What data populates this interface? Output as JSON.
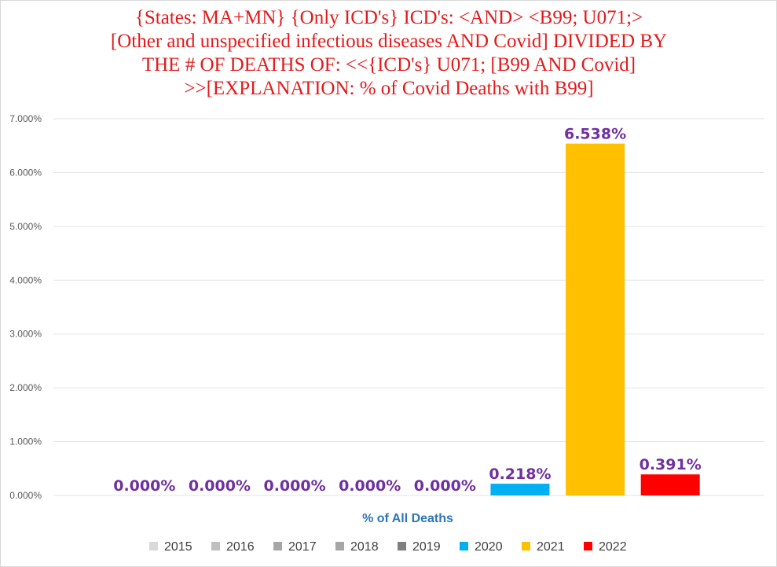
{
  "chart_data": {
    "type": "bar",
    "title": "{States: MA+MN}   {Only ICD's}  ICD's: <AND>  <B99; U071;>\n[Other and unspecified infectious diseases AND Covid] DIVIDED BY\nTHE # OF DEATHS OF: <<{ICD's}  U071;  [B99 AND Covid]\n>>[EXPLANATION:  % of Covid Deaths with B99]",
    "xlabel": "% of All Deaths",
    "ylabel": "",
    "ylim": [
      0,
      7
    ],
    "yticks": [
      0,
      1,
      2,
      3,
      4,
      5,
      6,
      7
    ],
    "ytick_labels": [
      "0.000%",
      "1.000%",
      "2.000%",
      "3.000%",
      "4.000%",
      "5.000%",
      "6.000%",
      "7.000%"
    ],
    "grid": true,
    "legend_position": "bottom",
    "series": [
      {
        "name": "2015",
        "value": 0.0,
        "label": "0.000%",
        "color": "#d9d9d9"
      },
      {
        "name": "2016",
        "value": 0.0,
        "label": "0.000%",
        "color": "#bfbfbf"
      },
      {
        "name": "2017",
        "value": 0.0,
        "label": "0.000%",
        "color": "#a6a6a6"
      },
      {
        "name": "2018",
        "value": 0.0,
        "label": "0.000%",
        "color": "#a6a6a6"
      },
      {
        "name": "2019",
        "value": 0.0,
        "label": "0.000%",
        "color": "#7f7f7f"
      },
      {
        "name": "2020",
        "value": 0.218,
        "label": "0.218%",
        "color": "#00b0f0"
      },
      {
        "name": "2021",
        "value": 6.538,
        "label": "6.538%",
        "color": "#ffc000"
      },
      {
        "name": "2022",
        "value": 0.391,
        "label": "0.391%",
        "color": "#ff0000"
      }
    ]
  }
}
